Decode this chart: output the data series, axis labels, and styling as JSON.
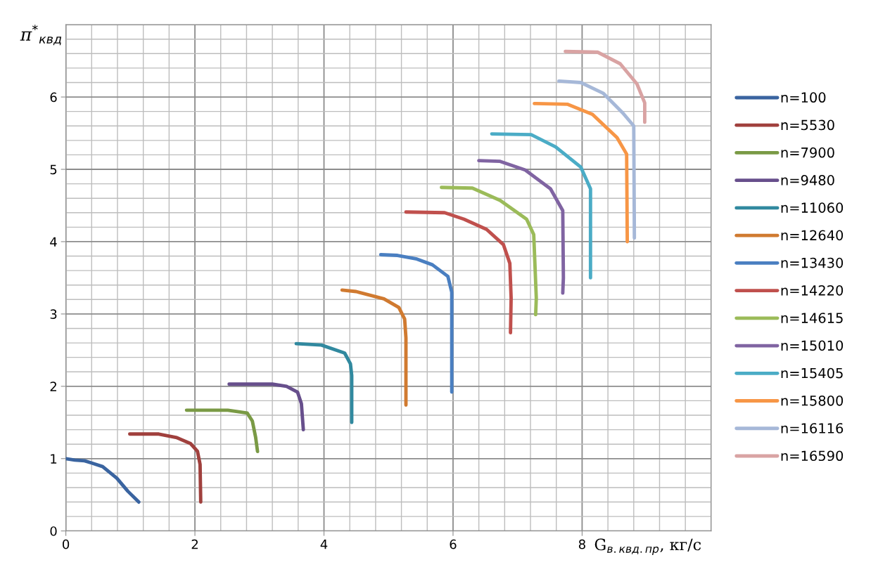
{
  "chart_data": {
    "type": "line",
    "xlabel": "G$_{в.квд.пр}$, кг/с",
    "ylabel": "π$^{*}$$_{квд}$",
    "xlim": [
      0,
      10
    ],
    "xticks": [
      0,
      2,
      4,
      6,
      8
    ],
    "ylim": [
      0,
      7
    ],
    "yticks": [
      0,
      1,
      2,
      3,
      4,
      5,
      6
    ],
    "grid": true,
    "legend": "right",
    "marker": "none",
    "line_style": "solid",
    "series": [
      {
        "name": "n=100",
        "color": "#3a64a0",
        "x": [
          0,
          0.14,
          0.29,
          0.4,
          0.57,
          0.79,
          0.96,
          1.13
        ],
        "values": [
          1.0,
          0.98,
          0.97,
          0.94,
          0.89,
          0.73,
          0.55,
          0.4
        ]
      },
      {
        "name": "n=5530",
        "color": "#a0403d",
        "x": [
          0.99,
          1.44,
          1.72,
          1.93,
          2.04,
          2.08,
          2.09
        ],
        "values": [
          1.34,
          1.34,
          1.29,
          1.21,
          1.1,
          0.92,
          0.4
        ]
      },
      {
        "name": "n=7900",
        "color": "#7a9a45",
        "x": [
          1.87,
          2.51,
          2.81,
          2.89,
          2.94,
          2.97
        ],
        "values": [
          1.67,
          1.67,
          1.63,
          1.52,
          1.3,
          1.1
        ]
      },
      {
        "name": "n=9480",
        "color": "#674f8c",
        "x": [
          2.53,
          3.2,
          3.42,
          3.59,
          3.65,
          3.68
        ],
        "values": [
          2.03,
          2.03,
          2.0,
          1.92,
          1.76,
          1.4
        ]
      },
      {
        "name": "n=11060",
        "color": "#31899f",
        "x": [
          3.57,
          3.96,
          4.32,
          4.41,
          4.43,
          4.43
        ],
        "values": [
          2.59,
          2.57,
          2.46,
          2.31,
          2.15,
          1.5
        ]
      },
      {
        "name": "n=12640",
        "color": "#d07a30",
        "x": [
          4.28,
          4.5,
          4.93,
          5.16,
          5.25,
          5.27,
          5.27
        ],
        "values": [
          3.33,
          3.31,
          3.21,
          3.09,
          2.93,
          2.67,
          1.74
        ]
      },
      {
        "name": "n=13430",
        "color": "#4a7fc1",
        "x": [
          4.88,
          5.14,
          5.44,
          5.68,
          5.92,
          5.98,
          5.98,
          5.98
        ],
        "values": [
          3.82,
          3.81,
          3.76,
          3.68,
          3.52,
          3.3,
          3.07,
          1.92
        ]
      },
      {
        "name": "n=14220",
        "color": "#c0504d",
        "x": [
          5.27,
          5.87,
          6.17,
          6.52,
          6.78,
          6.88,
          6.9,
          6.89
        ],
        "values": [
          4.41,
          4.4,
          4.31,
          4.17,
          3.96,
          3.7,
          3.22,
          2.74
        ]
      },
      {
        "name": "n=14615",
        "color": "#9bbb59",
        "x": [
          5.82,
          6.3,
          6.73,
          7.14,
          7.25,
          7.29,
          7.28
        ],
        "values": [
          4.75,
          4.74,
          4.57,
          4.31,
          4.1,
          3.22,
          2.99
        ]
      },
      {
        "name": "n=15010",
        "color": "#8064a2",
        "x": [
          6.4,
          6.73,
          7.12,
          7.51,
          7.7,
          7.71,
          7.7
        ],
        "values": [
          5.12,
          5.11,
          4.99,
          4.73,
          4.43,
          3.5,
          3.29
        ]
      },
      {
        "name": "n=15405",
        "color": "#4bacc6",
        "x": [
          6.6,
          7.21,
          7.59,
          7.98,
          8.13,
          8.13
        ],
        "values": [
          5.49,
          5.48,
          5.31,
          5.03,
          4.73,
          3.5
        ]
      },
      {
        "name": "n=15800",
        "color": "#f79646",
        "x": [
          7.26,
          7.77,
          8.16,
          8.54,
          8.69,
          8.7
        ],
        "values": [
          5.91,
          5.9,
          5.76,
          5.44,
          5.21,
          4.0
        ]
      },
      {
        "name": "n=16116",
        "color": "#a6b8d8",
        "x": [
          7.64,
          7.98,
          8.33,
          8.63,
          8.8,
          8.81
        ],
        "values": [
          6.22,
          6.2,
          6.05,
          5.78,
          5.6,
          4.05
        ]
      },
      {
        "name": "n=16590",
        "color": "#d9a3a3",
        "x": [
          7.74,
          8.24,
          8.59,
          8.85,
          8.97,
          8.97
        ],
        "values": [
          6.63,
          6.62,
          6.46,
          6.18,
          5.92,
          5.65
        ]
      }
    ]
  }
}
